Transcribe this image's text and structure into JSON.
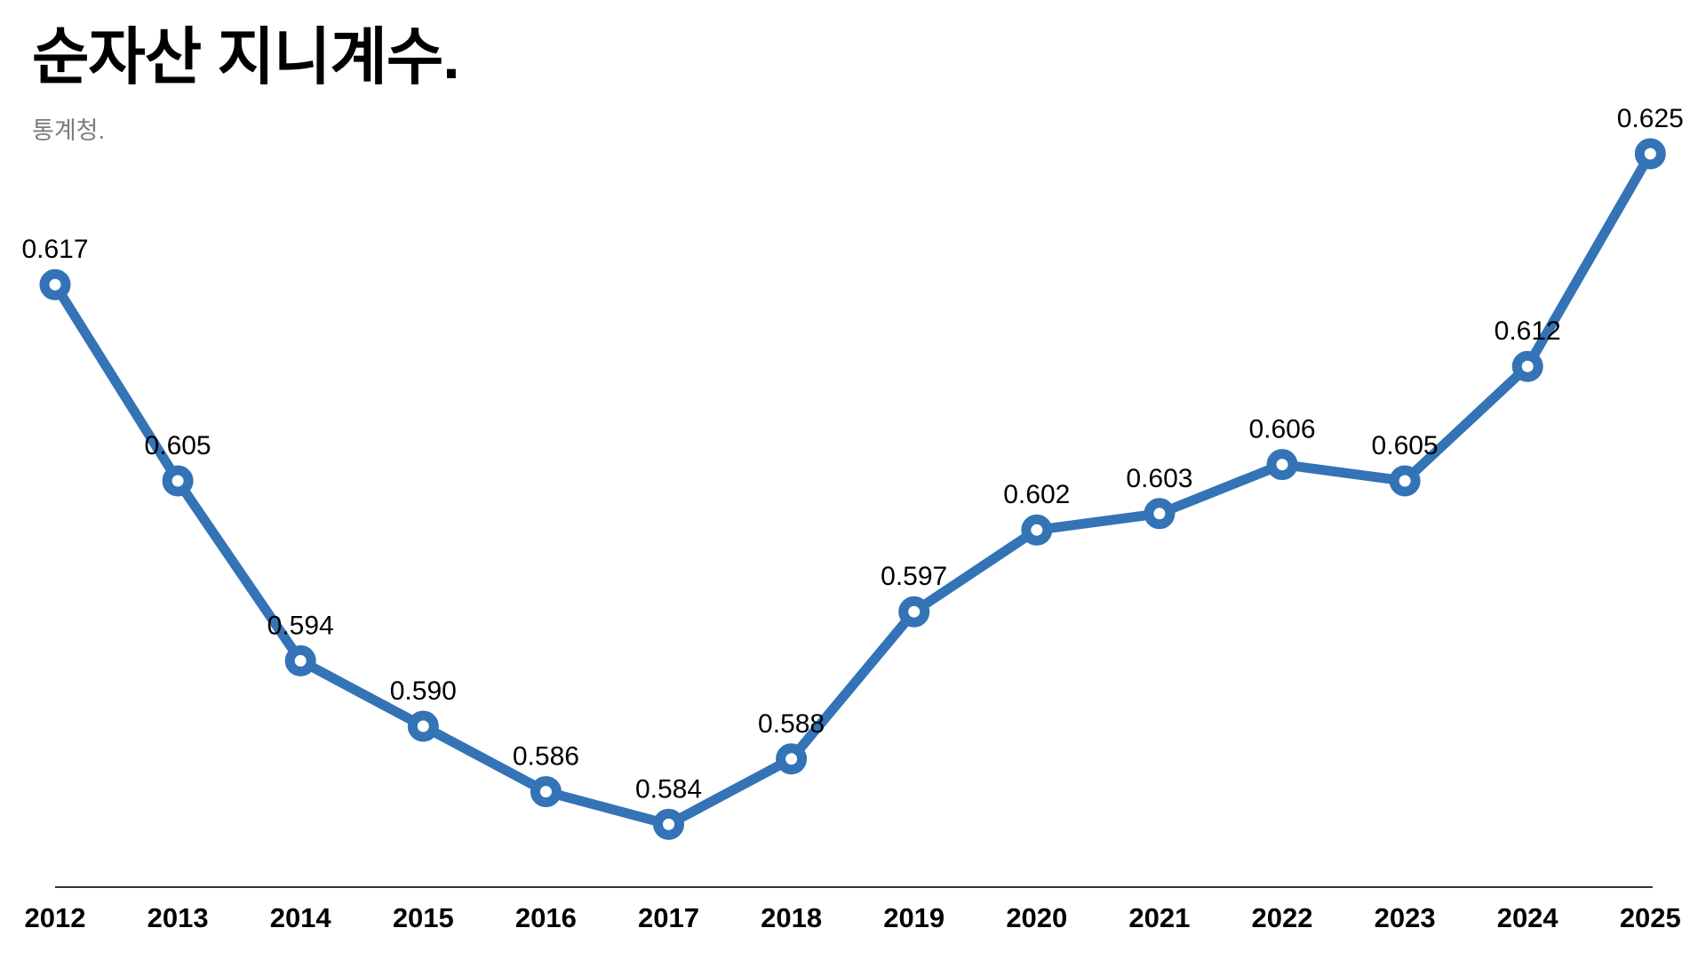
{
  "header": {
    "title": "순자산 지니계수.",
    "source": "통계청."
  },
  "chart_data": {
    "type": "line",
    "title": "순자산 지니계수.",
    "subtitle": "통계청.",
    "x": [
      "2012",
      "2013",
      "2014",
      "2015",
      "2016",
      "2017",
      "2018",
      "2019",
      "2020",
      "2021",
      "2022",
      "2023",
      "2024",
      "2025"
    ],
    "values": [
      0.617,
      0.605,
      0.594,
      0.59,
      0.586,
      0.584,
      0.588,
      0.597,
      0.602,
      0.603,
      0.606,
      0.605,
      0.612,
      0.625
    ],
    "point_labels": [
      "0.617",
      "0.605",
      "0.594",
      "0.590",
      "0.586",
      "0.584",
      "0.588",
      "0.597",
      "0.602",
      "0.603",
      "0.606",
      "0.605",
      "0.612",
      "0.625"
    ],
    "xlabel": "",
    "ylabel": "",
    "ylim": [
      0.584,
      0.625
    ],
    "grid": false,
    "legend": false,
    "line_color": "#3373b6",
    "marker_fill": "#ffffff",
    "value_label_color": "#000000",
    "year_label_color": "#000000",
    "axis_line_color": "#333333"
  }
}
